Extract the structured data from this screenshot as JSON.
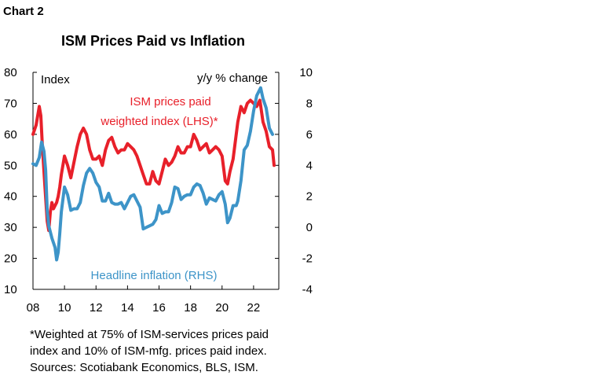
{
  "chart_label": "Chart 2",
  "chart_data": {
    "type": "line",
    "title": "ISM Prices Paid vs Inflation",
    "left_axis": {
      "label": "Index",
      "ylim": [
        10,
        80
      ],
      "ticks": [
        "80",
        "70",
        "60",
        "50",
        "40",
        "30",
        "20",
        "10"
      ]
    },
    "right_axis": {
      "label": "y/y % change",
      "ylim": [
        -4,
        10
      ],
      "ticks": [
        "10",
        "8",
        "6",
        "4",
        "2",
        "0",
        "-2",
        "-4"
      ]
    },
    "xlim": [
      2008,
      2023.6
    ],
    "x_ticks": [
      "08",
      "10",
      "12",
      "14",
      "16",
      "18",
      "20",
      "22"
    ],
    "grid": false,
    "series": [
      {
        "name": "ISM prices paid weighted index (LHS)",
        "axis": "left",
        "color": "#e8202a",
        "x": [
          2008.0,
          2008.2,
          2008.4,
          2008.5,
          2008.6,
          2008.75,
          2008.9,
          2009.0,
          2009.1,
          2009.2,
          2009.3,
          2009.4,
          2009.5,
          2009.6,
          2009.7,
          2009.8,
          2009.9,
          2010.0,
          2010.2,
          2010.4,
          2010.6,
          2010.8,
          2011.0,
          2011.2,
          2011.4,
          2011.6,
          2011.8,
          2012.0,
          2012.2,
          2012.4,
          2012.6,
          2012.8,
          2013.0,
          2013.2,
          2013.4,
          2013.6,
          2013.8,
          2014.0,
          2014.2,
          2014.4,
          2014.6,
          2014.8,
          2015.0,
          2015.2,
          2015.4,
          2015.6,
          2015.8,
          2016.0,
          2016.2,
          2016.4,
          2016.6,
          2016.8,
          2017.0,
          2017.2,
          2017.4,
          2017.6,
          2017.8,
          2018.0,
          2018.2,
          2018.4,
          2018.6,
          2018.8,
          2019.0,
          2019.2,
          2019.4,
          2019.6,
          2019.8,
          2020.0,
          2020.2,
          2020.35,
          2020.5,
          2020.7,
          2020.9,
          2021.0,
          2021.2,
          2021.4,
          2021.6,
          2021.8,
          2022.0,
          2022.2,
          2022.4,
          2022.6,
          2022.8,
          2023.0,
          2023.2,
          2023.3
        ],
        "values": [
          60,
          63,
          69,
          66,
          56,
          44,
          32,
          29,
          35,
          38,
          36,
          37,
          38,
          40,
          43,
          47,
          50,
          53,
          50,
          46,
          51,
          56,
          60,
          62,
          60,
          55,
          52,
          52,
          53,
          50,
          55,
          58,
          59,
          56,
          54,
          55,
          55,
          57,
          56,
          55,
          53,
          50,
          47,
          44,
          44,
          48,
          45,
          44,
          48,
          52,
          50,
          51,
          53,
          56,
          54,
          54,
          56,
          56,
          60,
          58,
          55,
          56,
          57,
          54,
          55,
          56,
          55,
          53,
          45,
          44,
          48,
          52,
          60,
          64,
          69,
          67,
          70,
          71,
          70,
          69,
          71,
          64,
          61,
          56,
          55,
          50
        ]
      },
      {
        "name": "Headline inflation (RHS)",
        "axis": "right",
        "color": "#3d94c8",
        "x": [
          2008.0,
          2008.2,
          2008.4,
          2008.55,
          2008.7,
          2008.8,
          2008.9,
          2009.0,
          2009.2,
          2009.4,
          2009.5,
          2009.6,
          2009.7,
          2009.8,
          2010.0,
          2010.2,
          2010.4,
          2010.6,
          2010.8,
          2011.0,
          2011.2,
          2011.4,
          2011.6,
          2011.8,
          2012.0,
          2012.2,
          2012.4,
          2012.6,
          2012.8,
          2013.0,
          2013.2,
          2013.4,
          2013.6,
          2013.8,
          2014.0,
          2014.2,
          2014.4,
          2014.6,
          2014.8,
          2015.0,
          2015.2,
          2015.4,
          2015.6,
          2015.8,
          2016.0,
          2016.2,
          2016.4,
          2016.6,
          2016.8,
          2017.0,
          2017.2,
          2017.4,
          2017.6,
          2017.8,
          2018.0,
          2018.2,
          2018.4,
          2018.6,
          2018.8,
          2019.0,
          2019.2,
          2019.4,
          2019.6,
          2019.8,
          2020.0,
          2020.2,
          2020.35,
          2020.5,
          2020.7,
          2020.9,
          2021.0,
          2021.2,
          2021.4,
          2021.6,
          2021.8,
          2022.0,
          2022.2,
          2022.45,
          2022.6,
          2022.8,
          2023.0,
          2023.2
        ],
        "values": [
          4.1,
          4.0,
          4.5,
          5.5,
          4.9,
          3.7,
          1.1,
          0.1,
          -0.7,
          -1.3,
          -2.1,
          -1.6,
          -0.4,
          1.0,
          2.6,
          2.1,
          1.1,
          1.2,
          1.2,
          1.6,
          2.7,
          3.5,
          3.8,
          3.5,
          2.9,
          2.6,
          1.7,
          1.7,
          2.2,
          1.6,
          1.5,
          1.5,
          1.6,
          1.2,
          1.6,
          2.0,
          2.1,
          1.7,
          1.3,
          -0.1,
          0.0,
          0.1,
          0.2,
          0.5,
          1.4,
          0.9,
          1.0,
          1.0,
          1.6,
          2.6,
          2.5,
          1.8,
          2.0,
          2.1,
          2.1,
          2.6,
          2.8,
          2.7,
          2.2,
          1.5,
          1.9,
          1.8,
          1.7,
          2.1,
          2.3,
          1.5,
          0.3,
          0.6,
          1.4,
          1.4,
          1.7,
          3.0,
          5.0,
          5.3,
          6.2,
          7.5,
          8.5,
          9.0,
          8.3,
          7.7,
          6.4,
          6.0
        ]
      }
    ],
    "annotations": {
      "ism_label_line1": "ISM prices paid",
      "ism_label_line2": "weighted index (LHS)*",
      "inflation_label": "Headline inflation (RHS)"
    }
  },
  "notes": {
    "line1": "*Weighted at 75% of ISM-services prices paid",
    "line2": "index and 10% of ISM-mfg. prices paid index.",
    "line3": "Sources: Scotiabank Economics, BLS, ISM."
  }
}
